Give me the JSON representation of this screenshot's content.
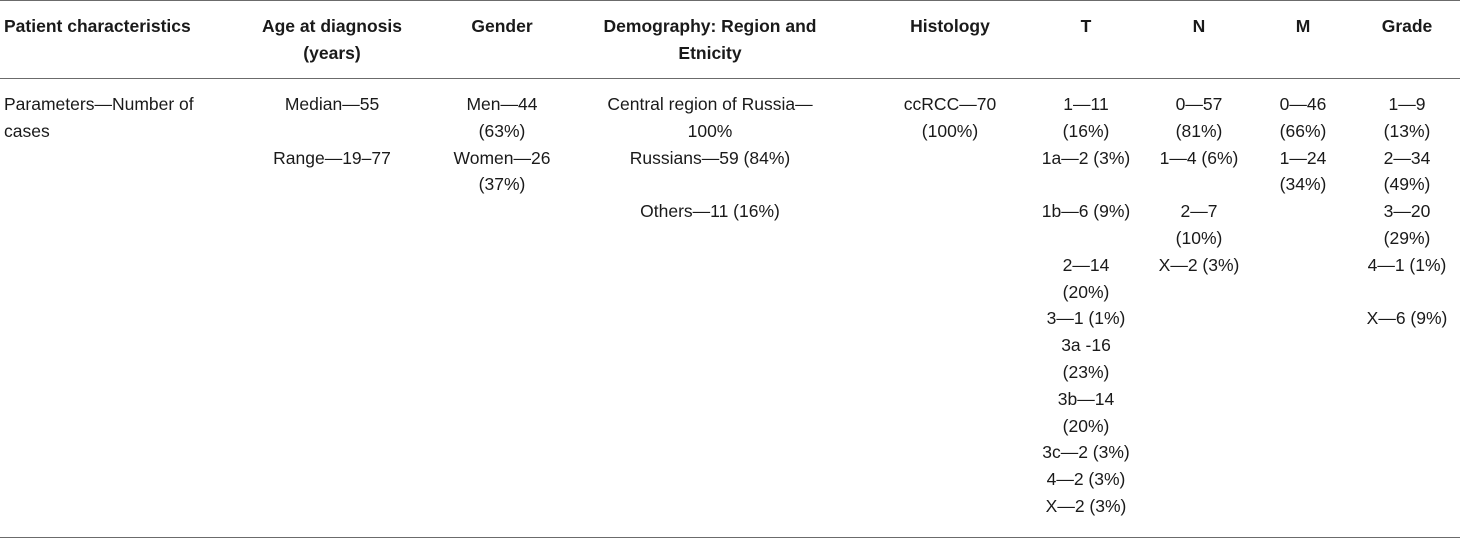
{
  "headers": {
    "patient_characteristics": "Patient characteristics",
    "age_at_diagnosis": "Age at diagnosis (years)",
    "gender": "Gender",
    "demography": "Demography: Region and Etnicity",
    "histology": "Histology",
    "t": "T",
    "n": "N",
    "m": "M",
    "grade": "Grade"
  },
  "row": {
    "label": "Parameters—Number of cases",
    "age": {
      "median": "Median—55",
      "range": "Range—19–77"
    },
    "gender": {
      "men_1": "Men—44",
      "men_2": "(63%)",
      "women_1": "Women—26",
      "women_2": "(37%)"
    },
    "demography": {
      "region_1": "Central region of Russia—",
      "region_2": "100%",
      "russians": "Russians—59 (84%)",
      "others": "Others—11 (16%)"
    },
    "histology": {
      "line1": "ccRCC—70",
      "line2": "(100%)"
    },
    "t": {
      "t1_a": "1—11",
      "t1_b": "(16%)",
      "t1a": "1a—2 (3%)",
      "t1b": "1b—6 (9%)",
      "t2_a": "2—14",
      "t2_b": "(20%)",
      "t3": "3—1 (1%)",
      "t3a_a": "3a -16",
      "t3a_b": "(23%)",
      "t3b_a": "3b—14",
      "t3b_b": "(20%)",
      "t3c": "3c—2 (3%)",
      "t4": "4—2 (3%)",
      "tx": "X—2 (3%)"
    },
    "n": {
      "n0_a": "0—57",
      "n0_b": "(81%)",
      "n1": "1—4 (6%)",
      "n2_a": "2—7",
      "n2_b": "(10%)",
      "nx": "X—2 (3%)"
    },
    "m": {
      "m0_a": "0—46",
      "m0_b": "(66%)",
      "m1_a": "1—24",
      "m1_b": "(34%)"
    },
    "grade": {
      "g1_a": "1—9",
      "g1_b": "(13%)",
      "g2_a": "2—34",
      "g2_b": "(49%)",
      "g3_a": "3—20",
      "g3_b": "(29%)",
      "g4": "4—1 (1%)",
      "gx": "X—6 (9%)"
    }
  }
}
